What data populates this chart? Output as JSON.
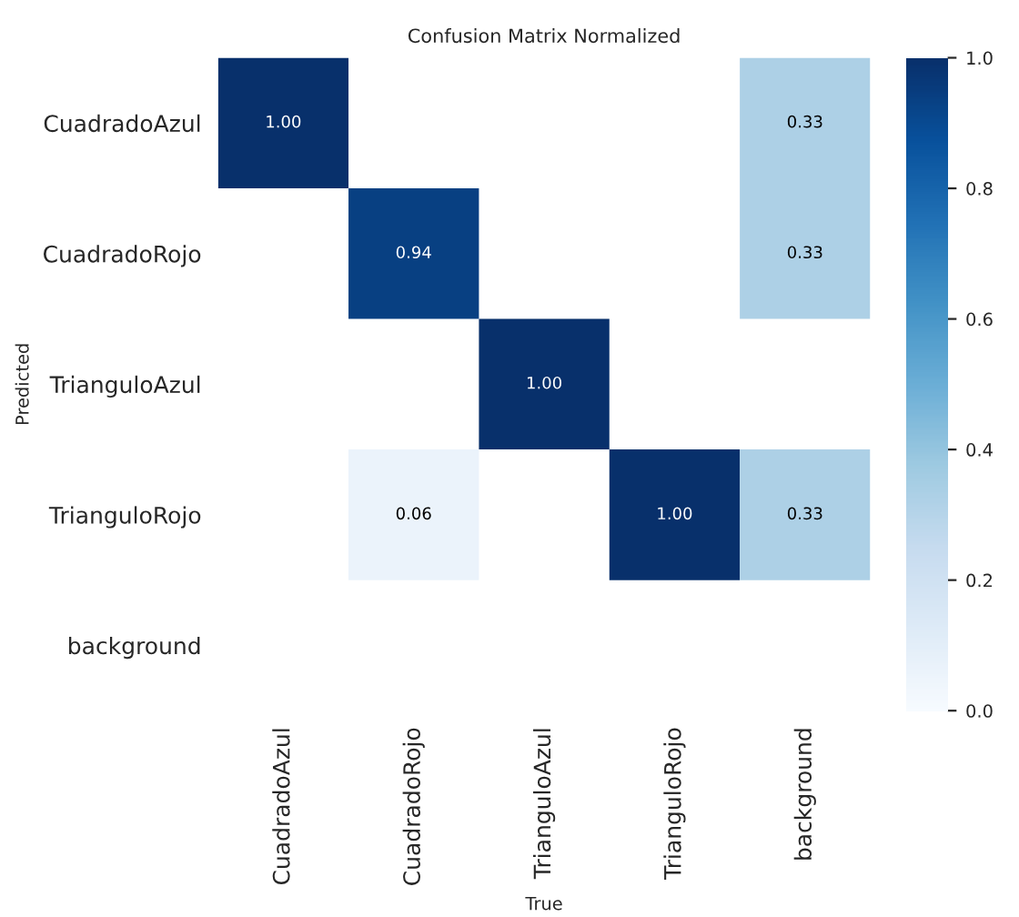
{
  "chart_data": {
    "type": "heatmap",
    "title": "Confusion Matrix Normalized",
    "xlabel": "True",
    "ylabel": "Predicted",
    "categories": [
      "CuadradoAzul",
      "CuadradoRojo",
      "TrianguloAzul",
      "TrianguloRojo",
      "background"
    ],
    "y_categories": [
      "CuadradoAzul",
      "CuadradoRojo",
      "TrianguloAzul",
      "TrianguloRojo",
      "background"
    ],
    "cells": [
      [
        1.0,
        null,
        null,
        null,
        0.33
      ],
      [
        null,
        0.94,
        null,
        null,
        0.33
      ],
      [
        null,
        null,
        1.0,
        null,
        null
      ],
      [
        null,
        0.06,
        null,
        1.0,
        0.33
      ],
      [
        null,
        null,
        null,
        null,
        null
      ]
    ],
    "cell_labels": [
      [
        "1.00",
        null,
        null,
        null,
        "0.33"
      ],
      [
        null,
        "0.94",
        null,
        null,
        "0.33"
      ],
      [
        null,
        null,
        "1.00",
        null,
        null
      ],
      [
        null,
        "0.06",
        null,
        "1.00",
        "0.33"
      ],
      [
        null,
        null,
        null,
        null,
        null
      ]
    ],
    "clim": [
      0,
      1
    ],
    "cticks": [
      {
        "value": 0,
        "label": "0.0"
      },
      {
        "value": 0.2,
        "label": "0.2"
      },
      {
        "value": 0.4,
        "label": "0.4"
      },
      {
        "value": 0.6,
        "label": "0.6"
      },
      {
        "value": 0.8,
        "label": "0.8"
      },
      {
        "value": 1,
        "label": "1.0"
      }
    ]
  }
}
